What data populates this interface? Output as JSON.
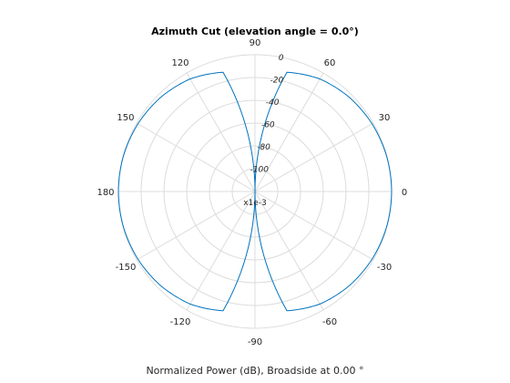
{
  "chart_data": {
    "type": "line",
    "subtype": "polar",
    "title": "Azimuth Cut (elevation angle = 0.0°)",
    "xlabel": "Normalized Power (dB), Broadside at 0.00 °",
    "scale_note": "x1e-3",
    "angle_ticks": [
      0,
      30,
      60,
      90,
      120,
      150,
      180,
      -150,
      -120,
      -90,
      -60,
      -30
    ],
    "angle_tick_labels": [
      "0",
      "30",
      "60",
      "90",
      "120",
      "150",
      "180",
      "-150",
      "-120",
      "-90",
      "-60",
      "-30"
    ],
    "radial_ticks": [
      0,
      -20,
      -40,
      -60,
      -80,
      -100
    ],
    "radial_tick_labels": [
      "0",
      "-20",
      "-40",
      "-60",
      "-80",
      "-100"
    ],
    "rlim": [
      -120,
      0
    ],
    "grid": true,
    "series": [
      {
        "color": "#0072bd",
        "theta_deg": [
          0,
          15,
          30,
          45,
          60,
          75,
          90,
          105,
          120,
          135,
          150,
          165,
          180,
          195,
          210,
          225,
          240,
          255,
          270,
          285,
          300,
          315,
          330,
          345
        ],
        "r_db": [
          0,
          -0.3,
          -1.25,
          -3.0,
          -6.0,
          -11.7,
          -120,
          -11.7,
          -6.0,
          -3.0,
          -1.25,
          -0.3,
          0,
          -0.3,
          -1.25,
          -3.0,
          -6.0,
          -11.7,
          -120,
          -11.7,
          -6.0,
          -3.0,
          -1.25,
          -0.3
        ]
      }
    ]
  }
}
